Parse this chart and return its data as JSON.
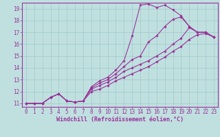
{
  "xlabel": "Windchill (Refroidissement éolien,°C)",
  "xlim": [
    -0.5,
    23.5
  ],
  "ylim": [
    10.7,
    19.5
  ],
  "xticks": [
    0,
    1,
    2,
    3,
    4,
    5,
    6,
    7,
    8,
    9,
    10,
    11,
    12,
    13,
    14,
    15,
    16,
    17,
    18,
    19,
    20,
    21,
    22,
    23
  ],
  "yticks": [
    11,
    12,
    13,
    14,
    15,
    16,
    17,
    18,
    19
  ],
  "line_color": "#993399",
  "bg_color": "#c0e0e0",
  "grid_color": "#a0c8c8",
  "lines": [
    {
      "x": [
        0,
        1,
        2,
        3,
        4,
        5,
        6,
        7,
        8,
        9,
        10,
        11,
        12,
        13,
        14,
        15,
        16,
        17,
        18,
        19,
        20,
        21,
        22,
        23
      ],
      "y": [
        11.0,
        11.0,
        11.0,
        11.5,
        11.8,
        11.2,
        11.1,
        11.2,
        12.4,
        12.9,
        13.2,
        13.8,
        14.6,
        16.7,
        19.3,
        19.4,
        19.1,
        19.3,
        18.9,
        18.4,
        17.5,
        17.0,
        17.0,
        16.6
      ]
    },
    {
      "x": [
        0,
        1,
        2,
        3,
        4,
        5,
        6,
        7,
        8,
        9,
        10,
        11,
        12,
        13,
        14,
        15,
        16,
        17,
        18,
        19,
        20,
        21,
        22,
        23
      ],
      "y": [
        11.0,
        11.0,
        11.0,
        11.5,
        11.8,
        11.2,
        11.1,
        11.2,
        12.3,
        12.7,
        13.0,
        13.5,
        14.1,
        14.7,
        15.0,
        16.2,
        16.7,
        17.5,
        18.1,
        18.3,
        17.5,
        17.0,
        17.0,
        16.6
      ]
    },
    {
      "x": [
        0,
        1,
        2,
        3,
        4,
        5,
        6,
        7,
        8,
        9,
        10,
        11,
        12,
        13,
        14,
        15,
        16,
        17,
        18,
        19,
        20,
        21,
        22,
        23
      ],
      "y": [
        11.0,
        11.0,
        11.0,
        11.5,
        11.8,
        11.2,
        11.1,
        11.2,
        12.2,
        12.5,
        12.8,
        13.2,
        13.7,
        14.0,
        14.3,
        14.6,
        15.0,
        15.4,
        16.0,
        16.5,
        17.4,
        17.0,
        17.0,
        16.6
      ]
    },
    {
      "x": [
        0,
        1,
        2,
        3,
        4,
        5,
        6,
        7,
        8,
        9,
        10,
        11,
        12,
        13,
        14,
        15,
        16,
        17,
        18,
        19,
        20,
        21,
        22,
        23
      ],
      "y": [
        11.0,
        11.0,
        11.0,
        11.5,
        11.8,
        11.2,
        11.1,
        11.2,
        12.0,
        12.2,
        12.5,
        12.9,
        13.2,
        13.5,
        13.8,
        14.1,
        14.5,
        14.9,
        15.4,
        15.8,
        16.4,
        16.8,
        16.9,
        16.6
      ]
    }
  ],
  "fontsize_ticks": 5.5,
  "fontsize_xlabel": 6.0,
  "marker_size": 1.8,
  "line_width": 0.8
}
